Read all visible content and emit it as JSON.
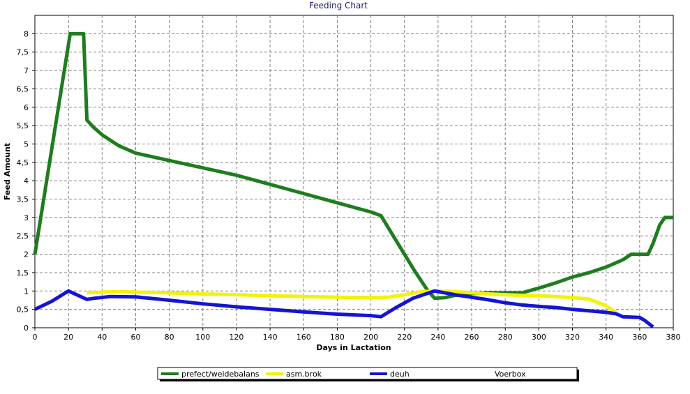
{
  "chart_data": {
    "type": "line",
    "title": "Feeding Chart",
    "xlabel": "Days in Lactation",
    "ylabel": "Feed Amount",
    "xlim": [
      0,
      380
    ],
    "ylim": [
      0,
      8.5
    ],
    "x_ticks": [
      "0",
      "20",
      "40",
      "60",
      "80",
      "100",
      "120",
      "140",
      "160",
      "180",
      "200",
      "220",
      "240",
      "260",
      "280",
      "300",
      "320",
      "340",
      "360",
      "380"
    ],
    "x_tick_values": [
      0,
      20,
      40,
      60,
      80,
      100,
      120,
      140,
      160,
      180,
      200,
      220,
      240,
      260,
      280,
      300,
      320,
      340,
      360,
      380
    ],
    "y_ticks": [
      "0",
      "0,5",
      "1",
      "1,5",
      "2",
      "2,5",
      "3",
      "3,5",
      "4",
      "4,5",
      "5",
      "5,5",
      "6",
      "6,5",
      "7",
      "7,5",
      "8"
    ],
    "y_tick_values": [
      0,
      0.5,
      1,
      1.5,
      2,
      2.5,
      3,
      3.5,
      4,
      4.5,
      5,
      5.5,
      6,
      6.5,
      7,
      7.5,
      8
    ],
    "grid": true,
    "legend_position": "bottom",
    "series": [
      {
        "name": "prefect/weidebalans",
        "color": "#1e7d1e",
        "points": [
          [
            0,
            2.0
          ],
          [
            21,
            8.0
          ],
          [
            29,
            8.0
          ],
          [
            31,
            5.65
          ],
          [
            35,
            5.45
          ],
          [
            40,
            5.25
          ],
          [
            50,
            4.95
          ],
          [
            60,
            4.75
          ],
          [
            80,
            4.55
          ],
          [
            100,
            4.35
          ],
          [
            120,
            4.15
          ],
          [
            140,
            3.9
          ],
          [
            160,
            3.65
          ],
          [
            180,
            3.4
          ],
          [
            200,
            3.15
          ],
          [
            206,
            3.05
          ],
          [
            216,
            2.3
          ],
          [
            226,
            1.55
          ],
          [
            234,
            1.0
          ],
          [
            238,
            0.8
          ],
          [
            244,
            0.82
          ],
          [
            250,
            0.88
          ],
          [
            260,
            0.93
          ],
          [
            270,
            0.95
          ],
          [
            280,
            0.95
          ],
          [
            290,
            0.95
          ],
          [
            300,
            1.08
          ],
          [
            310,
            1.22
          ],
          [
            320,
            1.38
          ],
          [
            330,
            1.5
          ],
          [
            340,
            1.65
          ],
          [
            350,
            1.85
          ],
          [
            355,
            2.0
          ],
          [
            360,
            2.0
          ],
          [
            365,
            2.0
          ],
          [
            368,
            2.3
          ],
          [
            372,
            2.8
          ],
          [
            375,
            3.0
          ],
          [
            380,
            3.0
          ]
        ]
      },
      {
        "name": "asm.brok",
        "color": "#f2f20a",
        "points": [
          [
            31,
            0.95
          ],
          [
            40,
            0.97
          ],
          [
            50,
            0.98
          ],
          [
            60,
            0.97
          ],
          [
            80,
            0.95
          ],
          [
            100,
            0.92
          ],
          [
            120,
            0.9
          ],
          [
            140,
            0.87
          ],
          [
            160,
            0.85
          ],
          [
            180,
            0.83
          ],
          [
            200,
            0.82
          ],
          [
            210,
            0.83
          ],
          [
            220,
            0.9
          ],
          [
            230,
            0.98
          ],
          [
            240,
            1.0
          ],
          [
            250,
            0.98
          ],
          [
            260,
            0.95
          ],
          [
            270,
            0.92
          ],
          [
            280,
            0.9
          ],
          [
            290,
            0.88
          ],
          [
            300,
            0.87
          ],
          [
            310,
            0.85
          ],
          [
            320,
            0.82
          ],
          [
            330,
            0.78
          ],
          [
            340,
            0.6
          ],
          [
            346,
            0.42
          ]
        ]
      },
      {
        "name": "deuh",
        "color": "#1414d2",
        "points": [
          [
            0,
            0.5
          ],
          [
            10,
            0.72
          ],
          [
            20,
            1.0
          ],
          [
            31,
            0.77
          ],
          [
            35,
            0.8
          ],
          [
            45,
            0.85
          ],
          [
            60,
            0.84
          ],
          [
            80,
            0.75
          ],
          [
            100,
            0.65
          ],
          [
            120,
            0.57
          ],
          [
            140,
            0.5
          ],
          [
            160,
            0.43
          ],
          [
            180,
            0.37
          ],
          [
            200,
            0.33
          ],
          [
            206,
            0.3
          ],
          [
            215,
            0.55
          ],
          [
            225,
            0.8
          ],
          [
            238,
            1.0
          ],
          [
            250,
            0.9
          ],
          [
            260,
            0.83
          ],
          [
            270,
            0.76
          ],
          [
            280,
            0.68
          ],
          [
            290,
            0.62
          ],
          [
            300,
            0.58
          ],
          [
            310,
            0.55
          ],
          [
            320,
            0.5
          ],
          [
            330,
            0.46
          ],
          [
            340,
            0.42
          ],
          [
            346,
            0.38
          ],
          [
            350,
            0.3
          ],
          [
            360,
            0.28
          ],
          [
            363,
            0.2
          ],
          [
            368,
            0.02
          ]
        ]
      },
      {
        "name": "Voerbox",
        "color": "#ffffff",
        "points": []
      }
    ]
  }
}
